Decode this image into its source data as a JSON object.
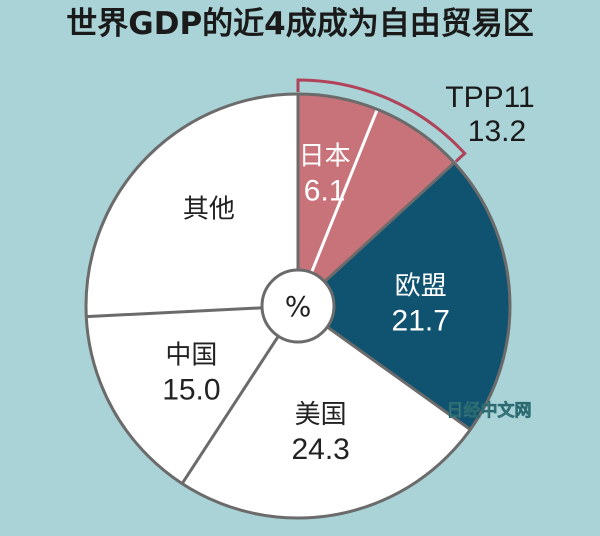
{
  "chart_data": {
    "type": "pie",
    "title": "世界GDP的近4成成为自由贸易区",
    "unit": "%",
    "slices": [
      {
        "name": "日本",
        "value": 6.1,
        "color": "#c8727a",
        "text_color": "#ffffff"
      },
      {
        "name": "",
        "value": 7.1,
        "color": "#c8727a",
        "text_color": "#ffffff"
      },
      {
        "name": "欧盟",
        "value": 21.7,
        "color": "#0f5371",
        "text_color": "#ffffff"
      },
      {
        "name": "美国",
        "value": 24.3,
        "color": "#ffffff",
        "text_color": "#222222"
      },
      {
        "name": "中国",
        "value": 15.0,
        "color": "#ffffff",
        "text_color": "#222222"
      },
      {
        "name": "其他",
        "value": 25.8,
        "color": "#ffffff",
        "text_color": "#222222"
      }
    ],
    "group_annotation": {
      "label": "TPP11",
      "value": "13.2"
    },
    "colors": {
      "background": "#a9d3d6",
      "tpp": "#c8727a",
      "eu": "#0f5371",
      "divider": "#6b6b6b",
      "bracket": "#b0435a"
    }
  },
  "watermark": "日经中文网"
}
